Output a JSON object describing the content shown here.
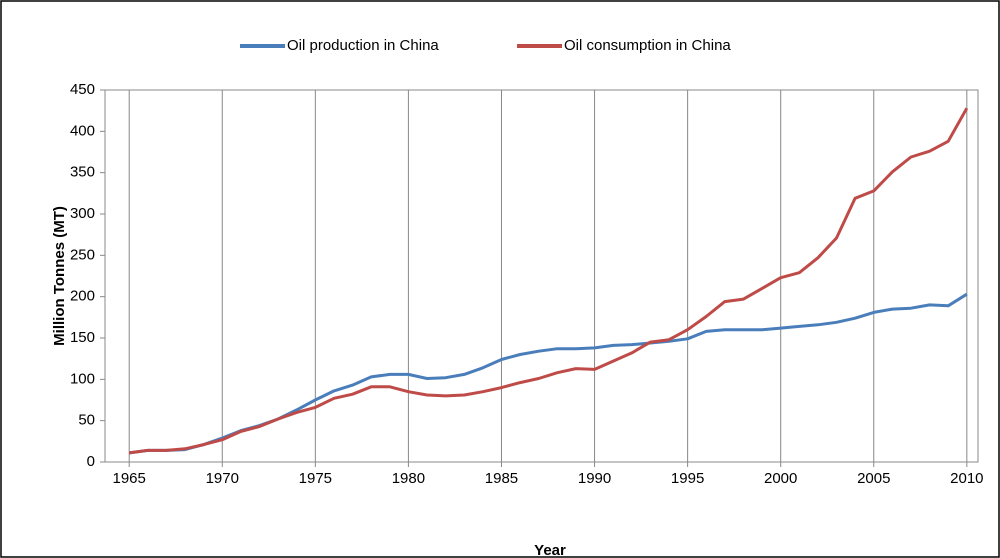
{
  "chart_data": {
    "type": "line",
    "x_label": "Year",
    "y_label": "Million Tonnes (MT)",
    "x": [
      1965,
      1966,
      1967,
      1968,
      1969,
      1970,
      1971,
      1972,
      1973,
      1974,
      1975,
      1976,
      1977,
      1978,
      1979,
      1980,
      1981,
      1982,
      1983,
      1984,
      1985,
      1986,
      1987,
      1988,
      1989,
      1990,
      1991,
      1992,
      1993,
      1994,
      1995,
      1996,
      1997,
      1998,
      1999,
      2000,
      2001,
      2002,
      2003,
      2004,
      2005,
      2006,
      2007,
      2008,
      2009,
      2010
    ],
    "series": [
      {
        "name": "Oil production in China",
        "color": "#4a7ebb",
        "values": [
          11,
          14,
          14,
          15,
          21,
          29,
          38,
          44,
          52,
          63,
          75,
          86,
          93,
          103,
          106,
          106,
          101,
          102,
          106,
          114,
          124,
          130,
          134,
          137,
          137,
          138,
          141,
          142,
          144,
          146,
          149,
          158,
          160,
          160,
          160,
          162,
          164,
          166,
          169,
          174,
          181,
          185,
          186,
          190,
          189,
          203
        ]
      },
      {
        "name": "Oil consumption in China",
        "color": "#be4b48",
        "values": [
          11,
          14,
          14,
          16,
          21,
          27,
          37,
          43,
          52,
          60,
          66,
          77,
          82,
          91,
          91,
          85,
          81,
          80,
          81,
          85,
          90,
          96,
          101,
          108,
          113,
          112,
          122,
          132,
          145,
          148,
          160,
          176,
          194,
          197,
          210,
          223,
          229,
          247,
          271,
          319,
          328,
          351,
          369,
          376,
          388,
          428
        ]
      }
    ],
    "xlim": [
      1963.7,
      2010.6
    ],
    "xticks": [
      1965,
      1970,
      1975,
      1980,
      1985,
      1990,
      1995,
      2000,
      2005,
      2010
    ],
    "ylim": [
      0,
      450
    ],
    "yticks": [
      0,
      50,
      100,
      150,
      200,
      250,
      300,
      350,
      400,
      450
    ],
    "grid": "x",
    "legend": "top"
  }
}
